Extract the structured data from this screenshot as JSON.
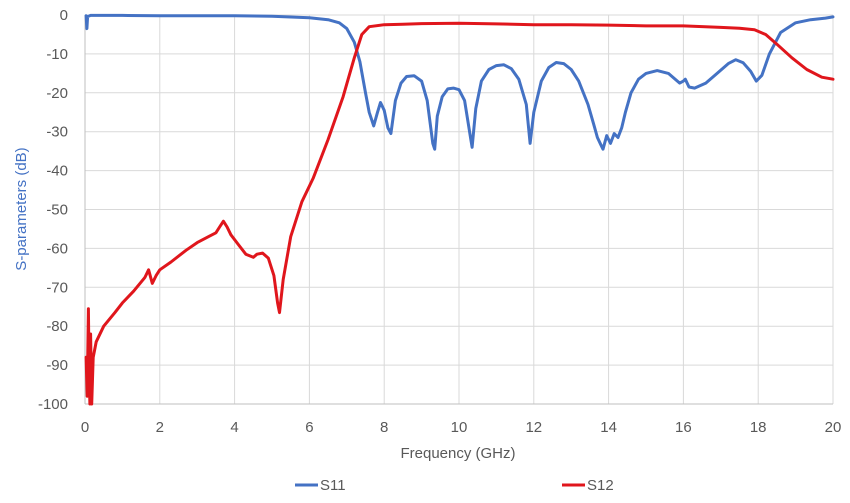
{
  "chart_data": {
    "type": "line",
    "title": "",
    "xlabel": "Frequency (GHz)",
    "ylabel": "S-parameters (dB)",
    "xlim": [
      0,
      20
    ],
    "ylim": [
      -100,
      0
    ],
    "x_ticks": [
      "0",
      "2",
      "4",
      "6",
      "8",
      "10",
      "12",
      "14",
      "16",
      "18",
      "20"
    ],
    "y_ticks": [
      "0",
      "-10",
      "-20",
      "-30",
      "-40",
      "-50",
      "-60",
      "-70",
      "-80",
      "-90",
      "-100"
    ],
    "grid": true,
    "legend_position": "bottom",
    "series": [
      {
        "name": "S11",
        "color": "#4472c4",
        "points": [
          [
            0.03,
            -0.2
          ],
          [
            0.05,
            -3.5
          ],
          [
            0.07,
            -0.4
          ],
          [
            0.15,
            -0.1
          ],
          [
            1,
            -0.1
          ],
          [
            2,
            -0.2
          ],
          [
            3,
            -0.2
          ],
          [
            4,
            -0.2
          ],
          [
            5,
            -0.3
          ],
          [
            6,
            -0.7
          ],
          [
            6.5,
            -1.2
          ],
          [
            6.8,
            -2
          ],
          [
            7.0,
            -3.5
          ],
          [
            7.2,
            -7
          ],
          [
            7.35,
            -12
          ],
          [
            7.5,
            -20
          ],
          [
            7.6,
            -25
          ],
          [
            7.72,
            -28.5
          ],
          [
            7.82,
            -25
          ],
          [
            7.9,
            -22.5
          ],
          [
            8.0,
            -24.5
          ],
          [
            8.1,
            -29
          ],
          [
            8.18,
            -30.5
          ],
          [
            8.3,
            -22
          ],
          [
            8.45,
            -17.5
          ],
          [
            8.6,
            -15.8
          ],
          [
            8.8,
            -15.6
          ],
          [
            9.0,
            -17
          ],
          [
            9.15,
            -22
          ],
          [
            9.3,
            -33
          ],
          [
            9.35,
            -34.5
          ],
          [
            9.42,
            -26
          ],
          [
            9.55,
            -21
          ],
          [
            9.7,
            -19
          ],
          [
            9.85,
            -18.8
          ],
          [
            10.0,
            -19.2
          ],
          [
            10.15,
            -22
          ],
          [
            10.3,
            -31
          ],
          [
            10.35,
            -34
          ],
          [
            10.45,
            -24
          ],
          [
            10.6,
            -17
          ],
          [
            10.8,
            -14
          ],
          [
            11.0,
            -13
          ],
          [
            11.2,
            -12.8
          ],
          [
            11.4,
            -13.8
          ],
          [
            11.6,
            -16.5
          ],
          [
            11.8,
            -23
          ],
          [
            11.9,
            -33
          ],
          [
            12.0,
            -25
          ],
          [
            12.2,
            -17
          ],
          [
            12.4,
            -13.5
          ],
          [
            12.6,
            -12.2
          ],
          [
            12.8,
            -12.5
          ],
          [
            13.0,
            -14
          ],
          [
            13.2,
            -17
          ],
          [
            13.45,
            -23
          ],
          [
            13.6,
            -28
          ],
          [
            13.7,
            -31.5
          ],
          [
            13.8,
            -33.5
          ],
          [
            13.85,
            -34.5
          ],
          [
            13.95,
            -31
          ],
          [
            14.05,
            -33
          ],
          [
            14.15,
            -30.5
          ],
          [
            14.25,
            -31.5
          ],
          [
            14.35,
            -29
          ],
          [
            14.45,
            -25
          ],
          [
            14.6,
            -20
          ],
          [
            14.8,
            -16.5
          ],
          [
            15.0,
            -15
          ],
          [
            15.3,
            -14.3
          ],
          [
            15.6,
            -15
          ],
          [
            15.9,
            -17.5
          ],
          [
            16.0,
            -17
          ],
          [
            16.05,
            -16.5
          ],
          [
            16.15,
            -18.5
          ],
          [
            16.3,
            -18.8
          ],
          [
            16.6,
            -17.5
          ],
          [
            16.9,
            -15
          ],
          [
            17.2,
            -12.5
          ],
          [
            17.4,
            -11.5
          ],
          [
            17.6,
            -12.3
          ],
          [
            17.8,
            -14.5
          ],
          [
            17.95,
            -17
          ],
          [
            18.1,
            -15.5
          ],
          [
            18.3,
            -10
          ],
          [
            18.6,
            -4.5
          ],
          [
            19.0,
            -2
          ],
          [
            19.4,
            -1.2
          ],
          [
            19.8,
            -0.8
          ],
          [
            20.0,
            -0.5
          ]
        ]
      },
      {
        "name": "S12",
        "color": "#e0161c",
        "points": [
          [
            0.03,
            -88
          ],
          [
            0.06,
            -98
          ],
          [
            0.09,
            -75.5
          ],
          [
            0.11,
            -92
          ],
          [
            0.13,
            -100
          ],
          [
            0.15,
            -82
          ],
          [
            0.18,
            -100
          ],
          [
            0.22,
            -88
          ],
          [
            0.3,
            -84
          ],
          [
            0.5,
            -80
          ],
          [
            0.8,
            -76.5
          ],
          [
            1.0,
            -74
          ],
          [
            1.3,
            -71
          ],
          [
            1.6,
            -67.5
          ],
          [
            1.7,
            -65.5
          ],
          [
            1.8,
            -69
          ],
          [
            1.9,
            -67
          ],
          [
            2.0,
            -65.5
          ],
          [
            2.3,
            -63.5
          ],
          [
            2.7,
            -60.5
          ],
          [
            3.0,
            -58.5
          ],
          [
            3.3,
            -57
          ],
          [
            3.5,
            -56
          ],
          [
            3.6,
            -54.5
          ],
          [
            3.7,
            -53
          ],
          [
            3.8,
            -54.5
          ],
          [
            3.9,
            -56.5
          ],
          [
            4.1,
            -59
          ],
          [
            4.3,
            -61.5
          ],
          [
            4.5,
            -62.3
          ],
          [
            4.6,
            -61.5
          ],
          [
            4.75,
            -61.2
          ],
          [
            4.9,
            -62.5
          ],
          [
            5.05,
            -67
          ],
          [
            5.15,
            -74
          ],
          [
            5.2,
            -76.5
          ],
          [
            5.3,
            -68
          ],
          [
            5.5,
            -57
          ],
          [
            5.8,
            -48
          ],
          [
            6.1,
            -42
          ],
          [
            6.5,
            -32
          ],
          [
            6.9,
            -21
          ],
          [
            7.2,
            -11
          ],
          [
            7.4,
            -5
          ],
          [
            7.6,
            -3
          ],
          [
            8.0,
            -2.5
          ],
          [
            8.5,
            -2.4
          ],
          [
            9.0,
            -2.2
          ],
          [
            10.0,
            -2.1
          ],
          [
            11.0,
            -2.3
          ],
          [
            12.0,
            -2.5
          ],
          [
            13.0,
            -2.5
          ],
          [
            14.0,
            -2.6
          ],
          [
            15.0,
            -2.8
          ],
          [
            16.0,
            -2.8
          ],
          [
            17.0,
            -3.2
          ],
          [
            17.5,
            -3.4
          ],
          [
            17.9,
            -3.8
          ],
          [
            18.2,
            -5
          ],
          [
            18.5,
            -7.5
          ],
          [
            18.9,
            -11
          ],
          [
            19.3,
            -14
          ],
          [
            19.7,
            -16
          ],
          [
            20.0,
            -16.5
          ]
        ]
      }
    ]
  }
}
